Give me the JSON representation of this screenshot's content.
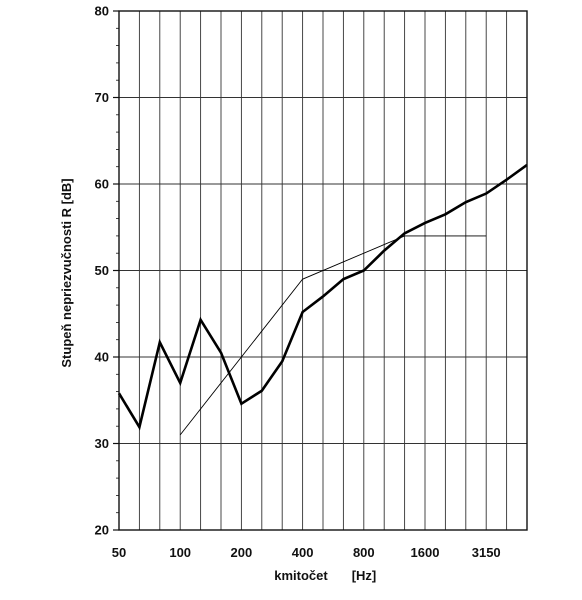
{
  "chart_data": {
    "type": "line",
    "title": "",
    "xlabel": "kmitočet",
    "xunit": "[Hz]",
    "ylabel": "Stupeň nepriezvučnosti  R [dB]",
    "ylim": [
      20,
      80
    ],
    "yticks": [
      20,
      30,
      40,
      50,
      60,
      70,
      80
    ],
    "x_scale": "log (one-third octave bands)",
    "x": [
      50,
      63,
      80,
      100,
      125,
      160,
      200,
      250,
      315,
      400,
      500,
      630,
      800,
      1000,
      1250,
      1600,
      2000,
      2500,
      3150,
      4000,
      5000
    ],
    "x_tick_labels": [
      {
        "index": 0,
        "label": "50"
      },
      {
        "index": 3,
        "label": "100"
      },
      {
        "index": 6,
        "label": "200"
      },
      {
        "index": 9,
        "label": "400"
      },
      {
        "index": 12,
        "label": "800"
      },
      {
        "index": 15,
        "label": "1600"
      },
      {
        "index": 18,
        "label": "3150"
      }
    ],
    "grid": true,
    "series": [
      {
        "style": "thick",
        "color": "#000000",
        "x": [
          50,
          63,
          80,
          100,
          125,
          160,
          200,
          250,
          315,
          400,
          500,
          630,
          800,
          1000,
          1250,
          1600,
          2000,
          2500,
          3150,
          4000,
          5000
        ],
        "values": [
          35.8,
          31.9,
          41.7,
          37.0,
          44.3,
          40.5,
          34.6,
          36.1,
          39.5,
          45.2,
          47.0,
          49.0,
          50.0,
          52.3,
          54.3,
          55.5,
          56.5,
          57.9,
          58.9,
          60.5,
          62.2
        ]
      },
      {
        "style": "thin",
        "color": "#000000",
        "x": [
          100,
          400,
          1250,
          3150
        ],
        "values": [
          31.0,
          49.0,
          54.0,
          54.0
        ]
      }
    ]
  }
}
